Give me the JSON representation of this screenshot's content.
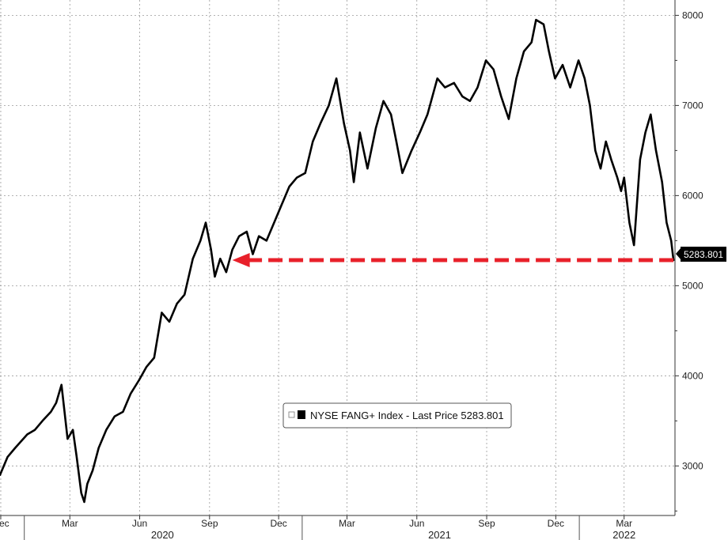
{
  "chart_data": {
    "type": "line",
    "title": "",
    "xlabel": "",
    "ylabel": "",
    "y_range": [
      2450,
      8100
    ],
    "y_ticks": [
      3000,
      4000,
      5000,
      6000,
      7000,
      8000
    ],
    "y_axis_side": "right",
    "grid": "dashed",
    "x_ticks": [
      {
        "label": "Dec",
        "date": "2019-12-01"
      },
      {
        "label": "Mar",
        "date": "2020-03-01"
      },
      {
        "label": "Jun",
        "date": "2020-06-01"
      },
      {
        "label": "Sep",
        "date": "2020-09-01"
      },
      {
        "label": "Dec",
        "date": "2020-12-01"
      },
      {
        "label": "Mar",
        "date": "2021-03-01"
      },
      {
        "label": "Jun",
        "date": "2021-06-01"
      },
      {
        "label": "Sep",
        "date": "2021-09-01"
      },
      {
        "label": "Dec",
        "date": "2021-12-01"
      },
      {
        "label": "Mar",
        "date": "2022-03-01"
      }
    ],
    "years": [
      {
        "label": "2020",
        "date": "2020-07-01"
      },
      {
        "label": "2021",
        "date": "2021-07-01"
      },
      {
        "label": "2022",
        "date": "2022-03-01"
      }
    ],
    "x_range": [
      "2019-11-30",
      "2022-05-07"
    ],
    "series": [
      {
        "name": "NYSE FANG+ Index",
        "color": "#000000",
        "points": [
          [
            "2019-11-30",
            2900
          ],
          [
            "2019-12-10",
            3100
          ],
          [
            "2019-12-20",
            3200
          ],
          [
            "2020-01-05",
            3350
          ],
          [
            "2020-01-15",
            3400
          ],
          [
            "2020-01-25",
            3500
          ],
          [
            "2020-02-05",
            3600
          ],
          [
            "2020-02-12",
            3700
          ],
          [
            "2020-02-19",
            3900
          ],
          [
            "2020-02-27",
            3300
          ],
          [
            "2020-03-05",
            3400
          ],
          [
            "2020-03-10",
            3100
          ],
          [
            "2020-03-16",
            2700
          ],
          [
            "2020-03-20",
            2600
          ],
          [
            "2020-03-24",
            2800
          ],
          [
            "2020-03-31",
            2950
          ],
          [
            "2020-04-08",
            3200
          ],
          [
            "2020-04-18",
            3400
          ],
          [
            "2020-04-29",
            3550
          ],
          [
            "2020-05-10",
            3600
          ],
          [
            "2020-05-20",
            3800
          ],
          [
            "2020-05-31",
            3950
          ],
          [
            "2020-06-10",
            4100
          ],
          [
            "2020-06-20",
            4200
          ],
          [
            "2020-06-30",
            4700
          ],
          [
            "2020-07-10",
            4600
          ],
          [
            "2020-07-20",
            4800
          ],
          [
            "2020-07-30",
            4900
          ],
          [
            "2020-08-10",
            5300
          ],
          [
            "2020-08-20",
            5500
          ],
          [
            "2020-08-27",
            5700
          ],
          [
            "2020-09-03",
            5400
          ],
          [
            "2020-09-08",
            5100
          ],
          [
            "2020-09-15",
            5300
          ],
          [
            "2020-09-23",
            5150
          ],
          [
            "2020-10-01",
            5400
          ],
          [
            "2020-10-10",
            5550
          ],
          [
            "2020-10-20",
            5600
          ],
          [
            "2020-10-28",
            5350
          ],
          [
            "2020-11-05",
            5550
          ],
          [
            "2020-11-15",
            5500
          ],
          [
            "2020-11-25",
            5700
          ],
          [
            "2020-12-05",
            5900
          ],
          [
            "2020-12-15",
            6100
          ],
          [
            "2020-12-25",
            6200
          ],
          [
            "2021-01-05",
            6250
          ],
          [
            "2021-01-15",
            6600
          ],
          [
            "2021-01-25",
            6800
          ],
          [
            "2021-02-05",
            7000
          ],
          [
            "2021-02-15",
            7300
          ],
          [
            "2021-02-25",
            6800
          ],
          [
            "2021-03-05",
            6500
          ],
          [
            "2021-03-10",
            6150
          ],
          [
            "2021-03-18",
            6700
          ],
          [
            "2021-03-28",
            6300
          ],
          [
            "2021-04-08",
            6750
          ],
          [
            "2021-04-18",
            7050
          ],
          [
            "2021-04-28",
            6900
          ],
          [
            "2021-05-05",
            6600
          ],
          [
            "2021-05-13",
            6250
          ],
          [
            "2021-05-25",
            6500
          ],
          [
            "2021-06-05",
            6700
          ],
          [
            "2021-06-15",
            6900
          ],
          [
            "2021-06-28",
            7300
          ],
          [
            "2021-07-08",
            7200
          ],
          [
            "2021-07-20",
            7250
          ],
          [
            "2021-07-31",
            7100
          ],
          [
            "2021-08-10",
            7050
          ],
          [
            "2021-08-20",
            7200
          ],
          [
            "2021-08-31",
            7500
          ],
          [
            "2021-09-10",
            7400
          ],
          [
            "2021-09-20",
            7100
          ],
          [
            "2021-09-30",
            6850
          ],
          [
            "2021-10-10",
            7300
          ],
          [
            "2021-10-20",
            7600
          ],
          [
            "2021-10-30",
            7700
          ],
          [
            "2021-11-05",
            7950
          ],
          [
            "2021-11-15",
            7900
          ],
          [
            "2021-11-22",
            7600
          ],
          [
            "2021-11-30",
            7300
          ],
          [
            "2021-12-10",
            7450
          ],
          [
            "2021-12-20",
            7200
          ],
          [
            "2021-12-31",
            7500
          ],
          [
            "2022-01-08",
            7300
          ],
          [
            "2022-01-15",
            7000
          ],
          [
            "2022-01-22",
            6500
          ],
          [
            "2022-01-29",
            6300
          ],
          [
            "2022-02-05",
            6600
          ],
          [
            "2022-02-12",
            6400
          ],
          [
            "2022-02-20",
            6200
          ],
          [
            "2022-02-25",
            6050
          ],
          [
            "2022-03-01",
            6200
          ],
          [
            "2022-03-08",
            5700
          ],
          [
            "2022-03-14",
            5450
          ],
          [
            "2022-03-22",
            6400
          ],
          [
            "2022-03-29",
            6700
          ],
          [
            "2022-04-05",
            6900
          ],
          [
            "2022-04-12",
            6500
          ],
          [
            "2022-04-20",
            6150
          ],
          [
            "2022-04-26",
            5700
          ],
          [
            "2022-05-02",
            5500
          ],
          [
            "2022-05-05",
            5283.801
          ]
        ]
      }
    ],
    "legend": {
      "position": "bottom-center",
      "text": "NYSE FANG+ Index - Last Price 5283.801"
    },
    "last_value_label": "5283.801",
    "annotation": {
      "type": "dashed-arrow",
      "color": "#e8202a",
      "y": 5283.801,
      "from_date": "2022-05-05",
      "to_date": "2020-10-01"
    }
  }
}
